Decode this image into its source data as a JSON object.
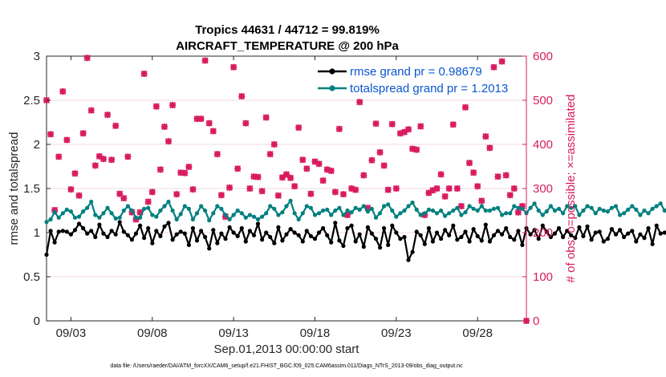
{
  "chart_data": {
    "type": "line",
    "title_line1": "Tropics 44631 / 44712 = 99.819%",
    "title_line2": "AIRCRAFT_TEMPERATURE @ 200 hPa",
    "xlabel": "Sep.01,2013 00:00:00 start",
    "ylabel_left": "rmse and totalspread",
    "ylabel_right": "# of obs: o=possible; ×=assimilated",
    "footer": "data file: /Users/raeder/DAI/ATM_forcXX/CAM6_setup/f.e21.FHIST_BGC.f09_025.CAM6assim.011/Diags_NTrS_2013-09/obs_diag_output.nc",
    "xlim": [
      1.5,
      31.0
    ],
    "ylim_left": [
      0,
      3
    ],
    "ylim_right": [
      0,
      600
    ],
    "x_ticks": [
      3,
      8,
      13,
      18,
      23,
      28
    ],
    "x_tick_labels": [
      "09/03",
      "09/08",
      "09/13",
      "09/18",
      "09/23",
      "09/28"
    ],
    "y_left_ticks": [
      0,
      0.5,
      1,
      1.5,
      2,
      2.5,
      3
    ],
    "y_left_tick_labels": [
      "0",
      "0.5",
      "1",
      "1.5",
      "2",
      "2.5",
      "3"
    ],
    "y_right_ticks": [
      0,
      100,
      200,
      300,
      400,
      500,
      600
    ],
    "y_right_tick_labels": [
      "0",
      "100",
      "200",
      "300",
      "400",
      "500",
      "600"
    ],
    "x_step_days": 0.25,
    "colors": {
      "rmse": "#000000",
      "spread": "#00807f",
      "obs": "#d81b60",
      "legend_text": "#0b57d0",
      "grid": "#e8b4c4"
    },
    "series": [
      {
        "name": "rmse grand pr = 0.98679",
        "axis": "left",
        "color": "#000000",
        "values": [
          0.75,
          1.02,
          0.89,
          1.01,
          1.02,
          1.01,
          0.98,
          1.03,
          1.1,
          1.05,
          0.99,
          1.02,
          0.95,
          1.09,
          0.99,
          0.95,
          1.02,
          0.98,
          1.12,
          1.01,
          0.97,
          0.92,
          0.99,
          1.08,
          0.94,
          1.05,
          0.88,
          1.02,
          0.96,
          1.07,
          1.11,
          0.92,
          0.98,
          1.01,
          0.99,
          0.86,
          1.05,
          0.91,
          1.02,
          0.95,
          0.82,
          1.03,
          0.88,
          0.99,
          0.93,
          1.06,
          1.0,
          0.96,
          1.05,
          0.9,
          1.02,
          0.97,
          1.1,
          0.92,
          1.0,
          0.95,
          0.88,
          1.06,
          0.91,
          0.98,
          1.04,
          1.0,
          0.97,
          0.9,
          1.02,
          0.96,
          0.93,
          1.0,
          1.05,
          0.97,
          0.89,
          1.11,
          0.91,
          0.85,
          1.05,
          1.08,
          0.9,
          0.98,
          0.84,
          1.06,
          0.99,
          0.93,
          0.83,
          1.05,
          0.86,
          1.08,
          1.0,
          0.93,
          0.95,
          0.69,
          0.78,
          1.01,
          0.97,
          0.87,
          1.05,
          0.9,
          1.0,
          0.93,
          1.03,
          0.97,
          1.08,
          0.92,
          0.95,
          1.01,
          0.9,
          1.04,
          0.96,
          0.91,
          1.09,
          0.9,
          0.97,
          1.02,
          0.98,
          1.05,
          0.95,
          0.92,
          1.02,
          0.86,
          1.05,
          0.98,
          1.03,
          0.93,
          1.08,
          1.01,
          0.95,
          0.99,
          1.05,
          0.95,
          1.02,
          0.97,
          0.94,
          1.06,
          0.96,
          1.07,
          0.92,
          1.0,
          1.01,
          0.9,
          0.93,
          1.04,
          0.98,
          1.03,
          0.95,
          0.99,
          1.02,
          0.9,
          0.98,
          0.94,
          1.05,
          0.87,
          1.08,
          0.99,
          1.0,
          1.02,
          0.92,
          1.04,
          0.97,
          0.96,
          0.98,
          1.06,
          0.92,
          1.01,
          1.03,
          0.98,
          0.92,
          0.9,
          1.02,
          1.01,
          1.03,
          0.97,
          1.05,
          0.92,
          1.04,
          0.76,
          1.01,
          1.03,
          1.03
        ]
      },
      {
        "name": "totalspread grand pr = 1.2013",
        "axis": "left",
        "color": "#00807f",
        "values": [
          1.12,
          1.15,
          1.23,
          1.17,
          1.22,
          1.26,
          1.24,
          1.17,
          1.18,
          1.24,
          1.28,
          1.35,
          1.2,
          1.17,
          1.22,
          1.28,
          1.22,
          1.16,
          1.17,
          1.25,
          1.3,
          1.25,
          1.17,
          1.17,
          1.27,
          1.28,
          1.2,
          1.18,
          1.25,
          1.3,
          1.35,
          1.25,
          1.15,
          1.21,
          1.3,
          1.27,
          1.15,
          1.22,
          1.3,
          1.25,
          1.14,
          1.22,
          1.3,
          1.27,
          1.2,
          1.15,
          1.2,
          1.25,
          1.22,
          1.17,
          1.2,
          1.18,
          1.15,
          1.18,
          1.22,
          1.3,
          1.27,
          1.2,
          1.23,
          1.3,
          1.36,
          1.22,
          1.15,
          1.22,
          1.3,
          1.28,
          1.2,
          1.22,
          1.25,
          1.26,
          1.2,
          1.25,
          1.28,
          1.2,
          1.25,
          1.23,
          1.28,
          1.26,
          1.3,
          1.24,
          1.27,
          1.17,
          1.22,
          1.3,
          1.32,
          1.25,
          1.18,
          1.22,
          1.25,
          1.3,
          1.34,
          1.26,
          1.2,
          1.22,
          1.26,
          1.25,
          1.22,
          1.25,
          1.19,
          1.22,
          1.25,
          1.28,
          1.2,
          1.23,
          1.3,
          1.27,
          1.25,
          1.3,
          1.25,
          1.25,
          1.27,
          1.28,
          1.2,
          1.22,
          1.22,
          1.3,
          1.28,
          1.27,
          1.22,
          1.28,
          1.33,
          1.25,
          1.2,
          1.24,
          1.3,
          1.25,
          1.27,
          1.22,
          1.3,
          1.28,
          1.3,
          1.2,
          1.25,
          1.3,
          1.28,
          1.22,
          1.27,
          1.25,
          1.24,
          1.28,
          1.3,
          1.2,
          1.22,
          1.26,
          1.3,
          1.26,
          1.2,
          1.25,
          1.22,
          1.27,
          1.3,
          1.33,
          1.25,
          1.28,
          1.3,
          1.22,
          1.25,
          1.2,
          1.26,
          1.25,
          1.22,
          1.3,
          1.27,
          1.23,
          1.2,
          1.22,
          1.3,
          1.2,
          1.28,
          1.22,
          1.3,
          1.34,
          1.25,
          1.3,
          1.22,
          1.28,
          1.32,
          1.35,
          1.27
        ]
      },
      {
        "name": "# of obs possible / assimilated",
        "axis": "right",
        "color": "#d81b60",
        "marker": "o/x",
        "points": [
          [
            1.5,
            500
          ],
          [
            1.75,
            423
          ],
          [
            2.0,
            251
          ],
          [
            2.25,
            372
          ],
          [
            2.5,
            520
          ],
          [
            2.75,
            410
          ],
          [
            3.0,
            298
          ],
          [
            3.25,
            334
          ],
          [
            3.5,
            284
          ],
          [
            3.75,
            425
          ],
          [
            4.0,
            596
          ],
          [
            4.25,
            477
          ],
          [
            4.5,
            352
          ],
          [
            4.75,
            373
          ],
          [
            5.0,
            367
          ],
          [
            5.25,
            467
          ],
          [
            5.5,
            365
          ],
          [
            5.75,
            442
          ],
          [
            6.0,
            288
          ],
          [
            6.25,
            278
          ],
          [
            6.5,
            372
          ],
          [
            6.75,
            246
          ],
          [
            7.0,
            230
          ],
          [
            7.25,
            246
          ],
          [
            7.5,
            560
          ],
          [
            7.75,
            270
          ],
          [
            8.0,
            292
          ],
          [
            8.25,
            486
          ],
          [
            8.5,
            343
          ],
          [
            8.75,
            440
          ],
          [
            9.0,
            407
          ],
          [
            9.25,
            489
          ],
          [
            9.5,
            287
          ],
          [
            9.75,
            336
          ],
          [
            10.0,
            335
          ],
          [
            10.25,
            349
          ],
          [
            10.5,
            298
          ],
          [
            10.75,
            458
          ],
          [
            11.0,
            458
          ],
          [
            11.25,
            590
          ],
          [
            11.5,
            448
          ],
          [
            11.75,
            430
          ],
          [
            12.0,
            378
          ],
          [
            12.25,
            285
          ],
          [
            12.5,
            236
          ],
          [
            12.75,
            302
          ],
          [
            13.0,
            575
          ],
          [
            13.25,
            345
          ],
          [
            13.5,
            509
          ],
          [
            13.75,
            448
          ],
          [
            14.0,
            300
          ],
          [
            14.25,
            327
          ],
          [
            14.5,
            326
          ],
          [
            14.75,
            294
          ],
          [
            15.0,
            461
          ],
          [
            15.25,
            378
          ],
          [
            15.5,
            400
          ],
          [
            15.75,
            284
          ],
          [
            16.0,
            325
          ],
          [
            16.25,
            332
          ],
          [
            16.5,
            324
          ],
          [
            16.75,
            305
          ],
          [
            17.0,
            438
          ],
          [
            17.25,
            365
          ],
          [
            17.5,
            345
          ],
          [
            17.75,
            288
          ],
          [
            18.0,
            361
          ],
          [
            18.25,
            356
          ],
          [
            18.5,
            318
          ],
          [
            18.75,
            343
          ],
          [
            19.0,
            340
          ],
          [
            19.25,
            292
          ],
          [
            19.5,
            435
          ],
          [
            19.75,
            287
          ],
          [
            20.0,
            240
          ],
          [
            20.25,
            300
          ],
          [
            20.5,
            297
          ],
          [
            20.75,
            496
          ],
          [
            21.0,
            330
          ],
          [
            21.25,
            256
          ],
          [
            21.5,
            364
          ],
          [
            21.75,
            447
          ],
          [
            22.0,
            382
          ],
          [
            22.25,
            352
          ],
          [
            22.5,
            297
          ],
          [
            22.75,
            446
          ],
          [
            23.0,
            300
          ],
          [
            23.25,
            425
          ],
          [
            23.5,
            428
          ],
          [
            23.75,
            434
          ],
          [
            24.0,
            390
          ],
          [
            24.25,
            388
          ],
          [
            24.5,
            441
          ],
          [
            24.75,
            240
          ],
          [
            25.0,
            290
          ],
          [
            25.25,
            296
          ],
          [
            25.5,
            300
          ],
          [
            25.75,
            332
          ],
          [
            26.0,
            282
          ],
          [
            26.25,
            300
          ],
          [
            26.5,
            445
          ],
          [
            26.75,
            300
          ],
          [
            27.0,
            260
          ],
          [
            27.25,
            484
          ],
          [
            27.5,
            358
          ],
          [
            27.75,
            336
          ],
          [
            28.0,
            305
          ],
          [
            28.25,
            272
          ],
          [
            28.5,
            418
          ],
          [
            28.75,
            392
          ],
          [
            29.0,
            575
          ],
          [
            29.25,
            327
          ],
          [
            29.5,
            588
          ],
          [
            29.75,
            330
          ],
          [
            30.0,
            285
          ],
          [
            30.25,
            300
          ],
          [
            30.5,
            246
          ],
          [
            30.75,
            260
          ],
          [
            31.0,
            0
          ]
        ]
      }
    ]
  }
}
